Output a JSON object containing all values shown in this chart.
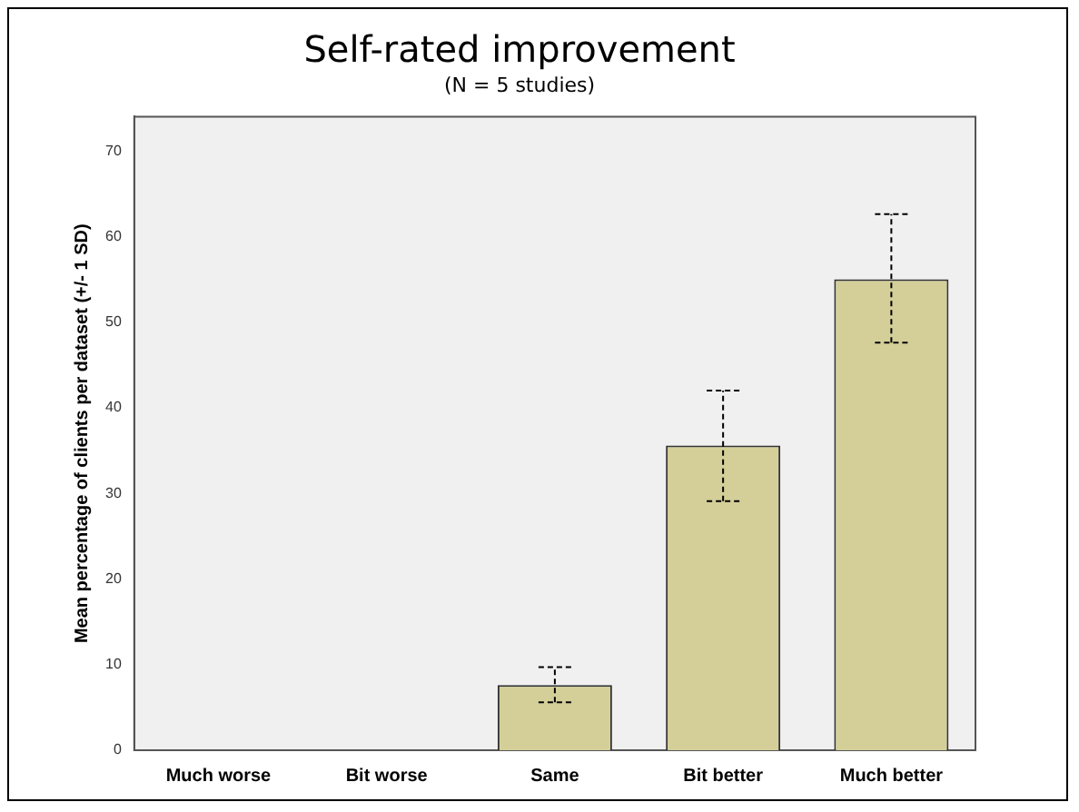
{
  "chart_data": {
    "type": "bar",
    "title": "Self-rated improvement",
    "subtitle": "(N = 5 studies)",
    "ylabel": "Mean percentage of clients per dataset (+/- 1 SD)",
    "categories": [
      "Much worse",
      "Bit worse",
      "Same",
      "Bit better",
      "Much better"
    ],
    "values": [
      0,
      0,
      7.6,
      35.6,
      55.0
    ],
    "errors": [
      null,
      null,
      [
        5.6,
        9.7
      ],
      [
        29.1,
        42.0
      ],
      [
        47.6,
        62.6
      ]
    ],
    "color": "#d4cf98",
    "ylim": [
      0,
      74
    ],
    "yticks": [
      0,
      10,
      20,
      30,
      40,
      50,
      60,
      70
    ],
    "grid": false,
    "legend": false
  }
}
